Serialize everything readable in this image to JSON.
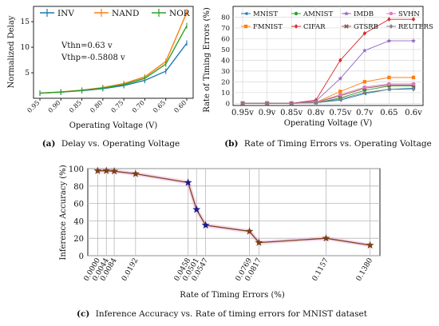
{
  "captions": [
    {
      "label": "(a)",
      "text": "Delay vs. Operating Voltage"
    },
    {
      "label": "(b)",
      "text": "Rate of Timing Errors vs. Operating Voltage"
    },
    {
      "label": "(c)",
      "text": "Inference Accuracy vs. Rate of timing errors for MNIST dataset"
    }
  ],
  "chart_data": [
    {
      "type": "line",
      "title": "",
      "xlabel": "Operating Voltage (V)",
      "ylabel": "Normalized Delay",
      "categories": [
        "0.95",
        "0.90",
        "0.85",
        "0.80",
        "0.75",
        "0.70",
        "0.65",
        "0.60"
      ],
      "yticks": [
        5,
        10,
        15
      ],
      "ylim": [
        0,
        18
      ],
      "grid": false,
      "legend_position": "top",
      "annotations": [
        "Vthn=0.63 v",
        "Vthp=-0.5808 v"
      ],
      "series": [
        {
          "name": "INV",
          "color": "#1f77b4",
          "values": [
            1.0,
            1.2,
            1.5,
            1.9,
            2.5,
            3.5,
            5.3,
            10.8
          ]
        },
        {
          "name": "NAND",
          "color": "#ff7f0e",
          "values": [
            1.0,
            1.25,
            1.6,
            2.1,
            2.9,
            4.2,
            7.2,
            16.8
          ]
        },
        {
          "name": "NOR",
          "color": "#2ca02c",
          "values": [
            1.0,
            1.2,
            1.55,
            2.0,
            2.7,
            3.9,
            6.7,
            14.2
          ]
        }
      ]
    },
    {
      "type": "line",
      "title": "",
      "xlabel": "Operating Voltage (V)",
      "ylabel": "Rate of Timing Errors (%)",
      "categories": [
        "0.95v",
        "0.9v",
        "0.85v",
        "0.8v",
        "0.75v",
        "0.7v",
        "0.65",
        "0.6v"
      ],
      "yticks": [
        0,
        10,
        20,
        30,
        40,
        50,
        60,
        70,
        80
      ],
      "ylim": [
        -2,
        90
      ],
      "grid": true,
      "legend_position": "top",
      "series": [
        {
          "name": "MNIST",
          "color": "#1f77b4",
          "marker": "tri",
          "values": [
            0,
            0,
            0,
            0.5,
            3,
            9,
            13,
            14
          ]
        },
        {
          "name": "FMNIST",
          "color": "#ff7f0e",
          "marker": "square",
          "values": [
            0,
            0,
            0,
            0.8,
            11,
            20,
            24,
            24
          ]
        },
        {
          "name": "AMNIST",
          "color": "#2ca02c",
          "marker": "circle",
          "values": [
            0,
            0,
            0,
            0.5,
            5,
            12,
            16,
            16
          ]
        },
        {
          "name": "CIFAR",
          "color": "#d62728",
          "marker": "diamond",
          "values": [
            0,
            0,
            0,
            3,
            40,
            65,
            78,
            78
          ]
        },
        {
          "name": "IMDB",
          "color": "#9467bd",
          "marker": "star",
          "values": [
            0,
            0,
            0,
            2,
            23,
            49,
            58,
            58
          ]
        },
        {
          "name": "GTSRB",
          "color": "#8c564b",
          "marker": "x",
          "values": [
            0,
            0,
            0,
            1,
            7,
            14,
            17,
            17
          ]
        },
        {
          "name": "SVHN",
          "color": "#e377c2",
          "marker": "circle",
          "values": [
            0,
            0,
            0,
            1,
            8,
            15,
            18,
            18
          ]
        },
        {
          "name": "REUTERS",
          "color": "#7f7f7f",
          "marker": "diamond",
          "values": [
            0,
            0,
            0,
            0.5,
            4,
            10,
            13,
            13
          ]
        }
      ]
    },
    {
      "type": "line",
      "title": "",
      "xlabel": "Rate of Timing Errors (%)",
      "ylabel": "Inference Accuracy (%)",
      "xlim": [
        -0.005,
        0.143
      ],
      "ylim": [
        0,
        100
      ],
      "yticks": [
        0,
        20,
        40,
        60,
        80,
        100
      ],
      "grid": true,
      "series": [
        {
          "name": "",
          "color": "#7b3f1a",
          "marker": "star",
          "x": [
            0.0,
            0.0044,
            0.0084,
            0.0192,
            0.0458,
            0.0501,
            0.0547,
            0.0769,
            0.0817,
            0.1157,
            0.138
          ],
          "x_labels": [
            "0.0000",
            "0.0044",
            "0.0084",
            "0.0192",
            "0.0458",
            "0.0501",
            "0.0547",
            "0.0769",
            "0.0817",
            "0.1157",
            "0.1380"
          ],
          "x_label_colors": [
            "#111111",
            "#111111",
            "#111111",
            "#111111",
            "#1a1aaa",
            "#1a1aaa",
            "#1a1aaa",
            "#111111",
            "#111111",
            "#111111",
            "#111111"
          ],
          "point_colors": [
            "#7b3f1a",
            "#7b3f1a",
            "#7b3f1a",
            "#7b3f1a",
            "#1a1a8a",
            "#1a1a8a",
            "#1a1a8a",
            "#7b3f1a",
            "#7b3f1a",
            "#7b3f1a",
            "#7b3f1a"
          ],
          "y": [
            97.5,
            97.5,
            97,
            94,
            84,
            53,
            35,
            28,
            15,
            20,
            12
          ]
        }
      ]
    }
  ]
}
